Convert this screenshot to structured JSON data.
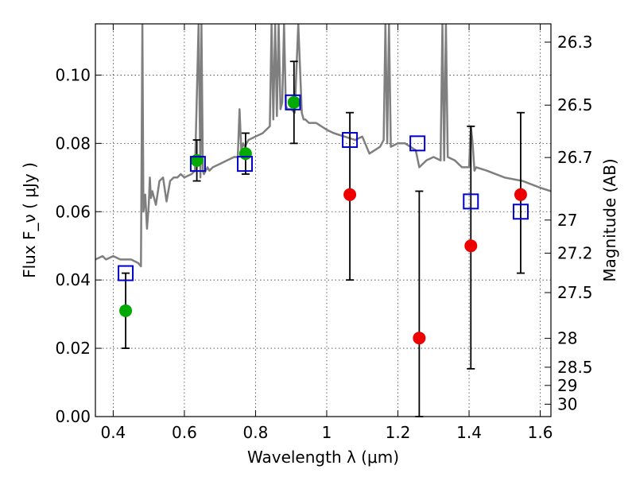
{
  "chart_data": {
    "type": "scatter",
    "title": "",
    "xlabel": "Wavelength λ (μm)",
    "ylabel": "Flux F_ν ( μJy )",
    "y2label": "Magnitude (AB)",
    "xlim": [
      0.35,
      1.63
    ],
    "ylim": [
      0.0,
      0.115
    ],
    "x_ticks": [
      0.4,
      0.6,
      0.8,
      1.0,
      1.2,
      1.4,
      1.6
    ],
    "x_tick_labels": [
      "0.4",
      "0.6",
      "0.8",
      "1",
      "1.2",
      "1.4",
      "1.6"
    ],
    "y_ticks": [
      0.0,
      0.02,
      0.04,
      0.06,
      0.08,
      0.1
    ],
    "y_tick_labels": [
      "0.00",
      "0.02",
      "0.04",
      "0.06",
      "0.08",
      "0.10"
    ],
    "y2_ticks_mag": [
      26.3,
      26.5,
      26.7,
      27.0,
      27.2,
      27.5,
      28.0,
      28.5,
      29.0,
      30.0
    ],
    "y2_tick_labels": [
      "26.3",
      "26.5",
      "26.7",
      "27",
      "27.2",
      "27.5",
      "28",
      "28.5",
      "29",
      "30"
    ],
    "grid": true,
    "series": [
      {
        "kind": "line",
        "color": "#7f7f7f",
        "x": [
          0.35,
          0.37,
          0.38,
          0.4,
          0.42,
          0.45,
          0.47,
          0.478,
          0.482,
          0.485,
          0.49,
          0.495,
          0.5,
          0.503,
          0.506,
          0.51,
          0.52,
          0.53,
          0.54,
          0.55,
          0.56,
          0.57,
          0.58,
          0.59,
          0.6,
          0.62,
          0.63,
          0.64,
          0.645,
          0.648,
          0.652,
          0.655,
          0.66,
          0.665,
          0.67,
          0.68,
          0.7,
          0.72,
          0.74,
          0.75,
          0.755,
          0.76,
          0.765,
          0.77,
          0.78,
          0.8,
          0.82,
          0.84,
          0.845,
          0.85,
          0.855,
          0.86,
          0.865,
          0.87,
          0.875,
          0.88,
          0.885,
          0.89,
          0.9,
          0.91,
          0.92,
          0.93,
          0.935,
          0.94,
          0.95,
          0.97,
          1.0,
          1.02,
          1.05,
          1.08,
          1.1,
          1.12,
          1.15,
          1.16,
          1.165,
          1.17,
          1.175,
          1.18,
          1.2,
          1.22,
          1.25,
          1.26,
          1.28,
          1.3,
          1.32,
          1.325,
          1.33,
          1.335,
          1.34,
          1.36,
          1.38,
          1.4,
          1.405,
          1.41,
          1.415,
          1.42,
          1.45,
          1.5,
          1.55,
          1.6,
          1.63
        ],
        "y": [
          0.046,
          0.047,
          0.046,
          0.047,
          0.046,
          0.046,
          0.045,
          0.044,
          0.115,
          0.06,
          0.065,
          0.055,
          0.062,
          0.07,
          0.064,
          0.066,
          0.062,
          0.069,
          0.07,
          0.063,
          0.069,
          0.07,
          0.07,
          0.071,
          0.07,
          0.071,
          0.072,
          0.115,
          0.07,
          0.115,
          0.072,
          0.071,
          0.072,
          0.073,
          0.072,
          0.073,
          0.074,
          0.075,
          0.076,
          0.076,
          0.09,
          0.078,
          0.08,
          0.079,
          0.081,
          0.082,
          0.083,
          0.085,
          0.115,
          0.087,
          0.115,
          0.088,
          0.115,
          0.09,
          0.092,
          0.115,
          0.091,
          0.09,
          0.09,
          0.089,
          0.115,
          0.089,
          0.087,
          0.087,
          0.086,
          0.086,
          0.084,
          0.083,
          0.082,
          0.081,
          0.082,
          0.077,
          0.079,
          0.081,
          0.115,
          0.08,
          0.115,
          0.079,
          0.08,
          0.08,
          0.078,
          0.073,
          0.075,
          0.076,
          0.075,
          0.115,
          0.075,
          0.115,
          0.076,
          0.075,
          0.073,
          0.073,
          0.085,
          0.08,
          0.072,
          0.073,
          0.072,
          0.07,
          0.069,
          0.067,
          0.066
        ]
      },
      {
        "kind": "points",
        "marker": "square",
        "color": "#0000cc",
        "x": [
          0.435,
          0.638,
          0.77,
          0.905,
          1.065,
          1.255,
          1.405,
          1.545
        ],
        "y": [
          0.042,
          0.074,
          0.074,
          0.092,
          0.081,
          0.08,
          0.063,
          0.06
        ]
      },
      {
        "kind": "points",
        "marker": "circle",
        "color": "#00aa00",
        "x": [
          0.435,
          0.635,
          0.772,
          0.908
        ],
        "y": [
          0.031,
          0.075,
          0.077,
          0.092
        ]
      },
      {
        "kind": "points",
        "marker": "circle",
        "color": "#ee0000",
        "x": [
          1.065,
          1.26,
          1.405,
          1.545
        ],
        "y": [
          0.065,
          0.023,
          0.05,
          0.065
        ]
      },
      {
        "kind": "errorbars",
        "color": "#000000",
        "x": [
          0.435,
          0.635,
          0.772,
          0.908,
          1.065,
          1.26,
          1.405,
          1.545
        ],
        "y_low": [
          0.02,
          0.069,
          0.071,
          0.08,
          0.04,
          0.0,
          0.014,
          0.042
        ],
        "y_high": [
          0.042,
          0.081,
          0.083,
          0.104,
          0.089,
          0.066,
          0.085,
          0.089
        ]
      }
    ]
  }
}
